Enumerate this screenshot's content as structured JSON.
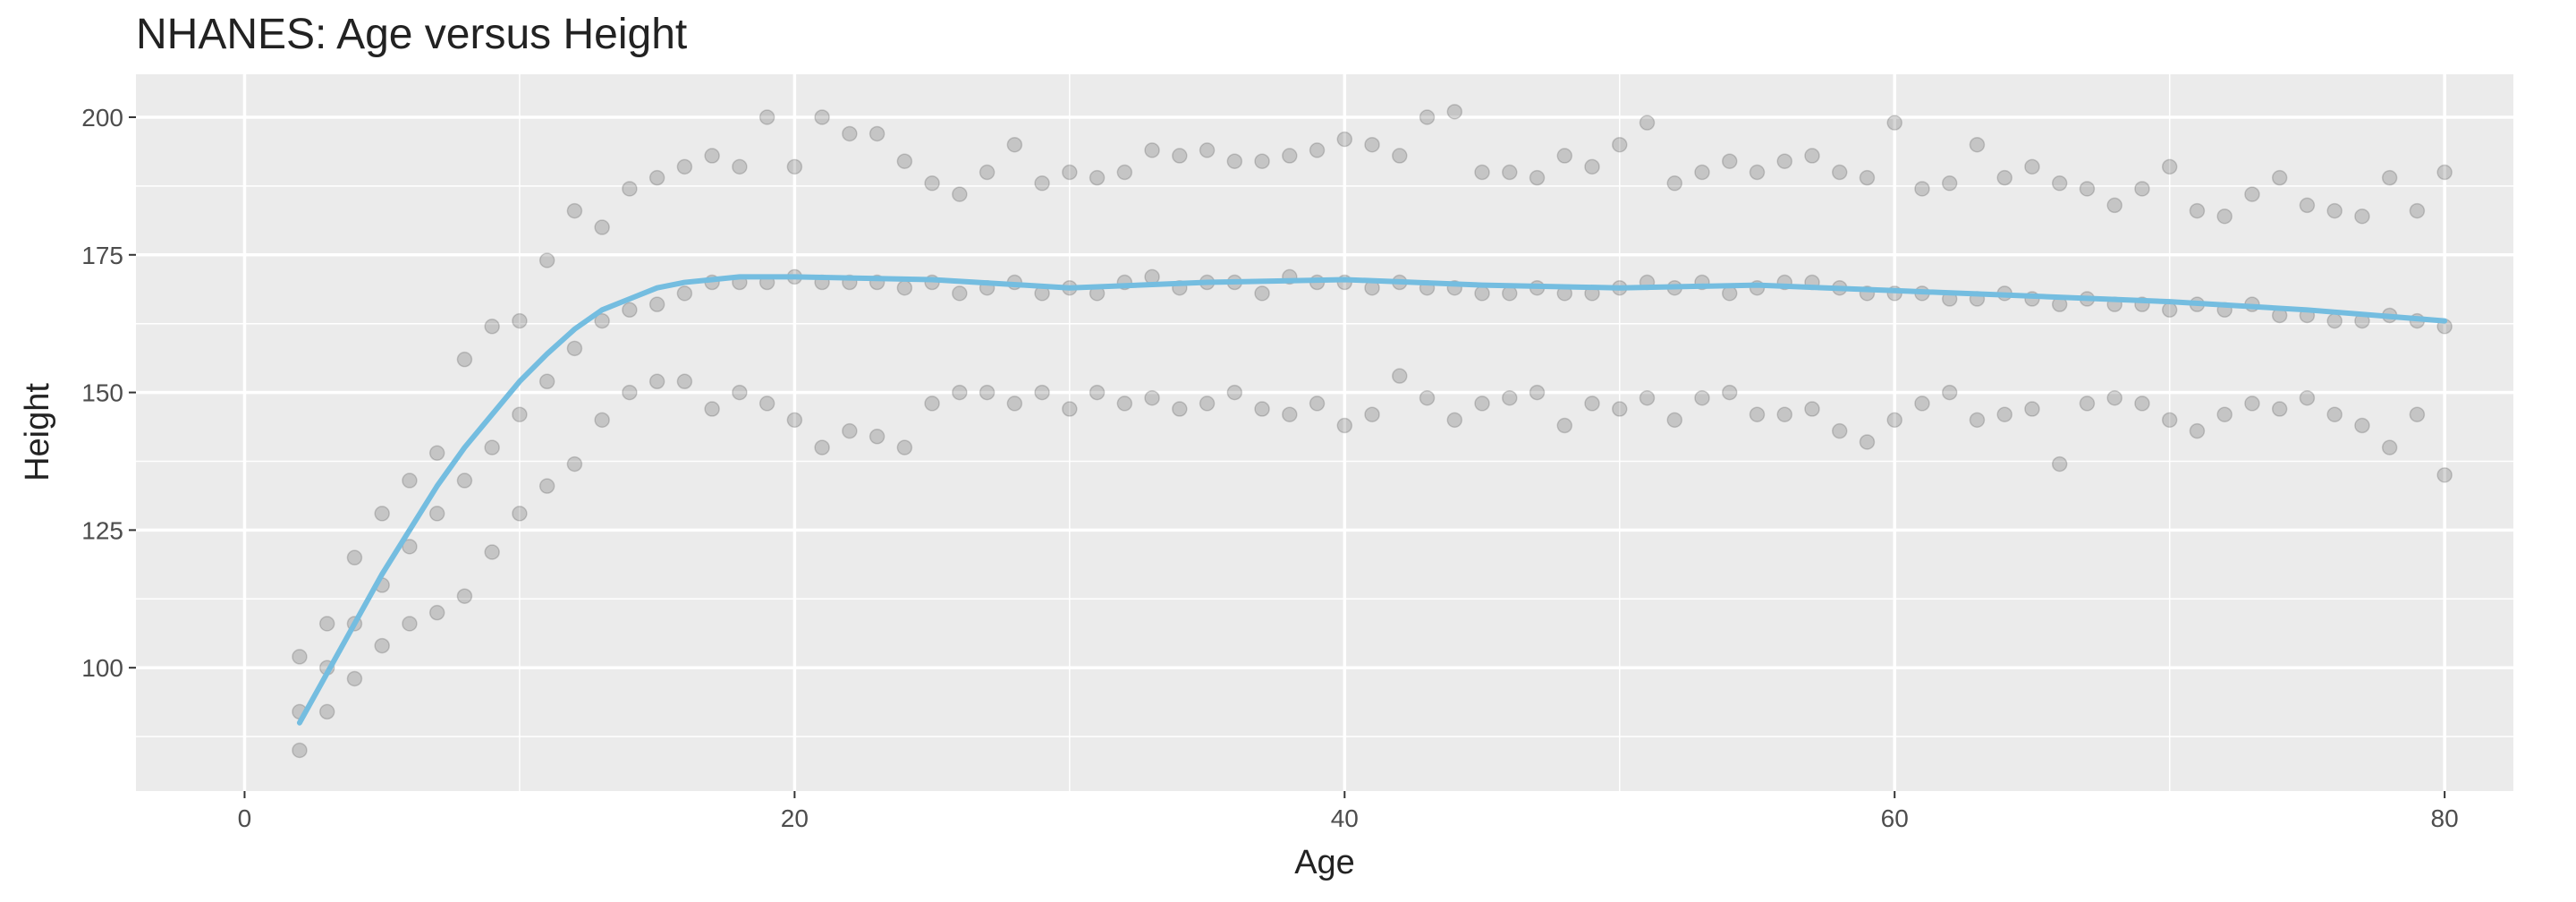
{
  "chart_data": {
    "type": "scatter",
    "title": "NHANES: Age versus Height",
    "x_label": "Age",
    "y_label": "Height",
    "xlim": [
      -3.95,
      82.5
    ],
    "ylim": [
      77.6,
      207.8
    ],
    "xticks": [
      0,
      20,
      40,
      60,
      80
    ],
    "yticks": [
      100,
      125,
      150,
      175,
      200
    ],
    "x_minor_grid": [
      10,
      30,
      50,
      70
    ],
    "y_minor_grid": [
      87.5,
      112.5,
      137.5,
      162.5,
      187.5
    ],
    "grid": true,
    "panel_color": "#ebebeb",
    "points": {
      "color": "#000000",
      "opacity": 0.16,
      "x": [
        2,
        2,
        2,
        3,
        3,
        3,
        4,
        4,
        4,
        5,
        5,
        5,
        6,
        6,
        6,
        7,
        7,
        7,
        8,
        8,
        8,
        9,
        9,
        9,
        10,
        10,
        10,
        11,
        11,
        11,
        12,
        12,
        12,
        13,
        13,
        13,
        14,
        14,
        14,
        15,
        15,
        15,
        16,
        16,
        16,
        17,
        17,
        17,
        18,
        18,
        18,
        19,
        19,
        19,
        20,
        20,
        20,
        21,
        21,
        21,
        22,
        22,
        22,
        23,
        23,
        23,
        24,
        24,
        24,
        25,
        25,
        25,
        26,
        26,
        26,
        27,
        27,
        27,
        28,
        28,
        28,
        29,
        29,
        29,
        30,
        30,
        30,
        31,
        31,
        31,
        32,
        32,
        32,
        33,
        33,
        33,
        34,
        34,
        34,
        35,
        35,
        35,
        36,
        36,
        36,
        37,
        37,
        37,
        38,
        38,
        38,
        39,
        39,
        39,
        40,
        40,
        40,
        41,
        41,
        41,
        42,
        42,
        42,
        43,
        43,
        43,
        44,
        44,
        44,
        45,
        45,
        45,
        46,
        46,
        46,
        47,
        47,
        47,
        48,
        48,
        48,
        49,
        49,
        49,
        50,
        50,
        50,
        51,
        51,
        51,
        52,
        52,
        52,
        53,
        53,
        53,
        54,
        54,
        54,
        55,
        55,
        55,
        56,
        56,
        56,
        57,
        57,
        57,
        58,
        58,
        58,
        59,
        59,
        59,
        60,
        60,
        60,
        61,
        61,
        61,
        62,
        62,
        62,
        63,
        63,
        63,
        64,
        64,
        64,
        65,
        65,
        65,
        66,
        66,
        66,
        67,
        67,
        67,
        68,
        68,
        68,
        69,
        69,
        69,
        70,
        70,
        70,
        71,
        71,
        71,
        72,
        72,
        72,
        73,
        73,
        73,
        74,
        74,
        74,
        75,
        75,
        75,
        76,
        76,
        76,
        77,
        77,
        77,
        78,
        78,
        78,
        79,
        79,
        79,
        80,
        80,
        80
      ],
      "values": [
        85,
        92,
        102,
        92,
        100,
        108,
        98,
        108,
        120,
        104,
        115,
        128,
        108,
        122,
        134,
        110,
        128,
        139,
        113,
        134,
        156,
        121,
        140,
        162,
        128,
        146,
        163,
        133,
        152,
        174,
        137,
        158,
        183,
        145,
        163,
        180,
        150,
        165,
        187,
        152,
        166,
        189,
        152,
        168,
        191,
        147,
        170,
        193,
        150,
        170,
        191,
        148,
        170,
        200,
        145,
        171,
        191,
        140,
        170,
        200,
        143,
        170,
        197,
        142,
        170,
        197,
        140,
        169,
        192,
        148,
        170,
        188,
        150,
        168,
        186,
        150,
        169,
        190,
        148,
        170,
        195,
        150,
        168,
        188,
        147,
        169,
        190,
        150,
        168,
        189,
        148,
        170,
        190,
        149,
        171,
        194,
        147,
        169,
        193,
        148,
        170,
        194,
        150,
        170,
        192,
        147,
        168,
        192,
        146,
        171,
        193,
        148,
        170,
        194,
        144,
        170,
        196,
        146,
        169,
        195,
        153,
        170,
        193,
        149,
        169,
        200,
        145,
        169,
        201,
        148,
        168,
        190,
        149,
        168,
        190,
        150,
        169,
        189,
        144,
        168,
        193,
        148,
        168,
        191,
        147,
        169,
        195,
        149,
        170,
        199,
        145,
        169,
        188,
        149,
        170,
        190,
        150,
        168,
        192,
        146,
        169,
        190,
        146,
        170,
        192,
        147,
        170,
        193,
        143,
        169,
        190,
        141,
        168,
        189,
        145,
        168,
        199,
        148,
        168,
        187,
        150,
        167,
        188,
        145,
        167,
        195,
        146,
        168,
        189,
        147,
        167,
        191,
        137,
        166,
        188,
        148,
        167,
        187,
        149,
        166,
        184,
        148,
        166,
        187,
        145,
        165,
        191,
        143,
        166,
        183,
        146,
        165,
        182,
        148,
        166,
        186,
        147,
        164,
        189,
        149,
        164,
        184,
        146,
        163,
        183,
        144,
        163,
        182,
        140,
        164,
        189,
        146,
        163,
        183,
        135,
        162,
        190
      ]
    },
    "smooth": {
      "color": "#74bde0",
      "x": [
        2,
        3,
        4,
        5,
        6,
        7,
        8,
        9,
        10,
        11,
        12,
        13,
        14,
        15,
        16,
        17,
        18,
        19,
        20,
        25,
        30,
        35,
        40,
        45,
        50,
        55,
        60,
        65,
        70,
        75,
        80
      ],
      "values": [
        90,
        99,
        108,
        117,
        125,
        133,
        140,
        146,
        152,
        157,
        161.5,
        165,
        167,
        169,
        170,
        170.5,
        171,
        171,
        171,
        170.5,
        169,
        170,
        170.5,
        169.5,
        169,
        169.5,
        168.5,
        167.5,
        166.5,
        165,
        163
      ]
    }
  }
}
